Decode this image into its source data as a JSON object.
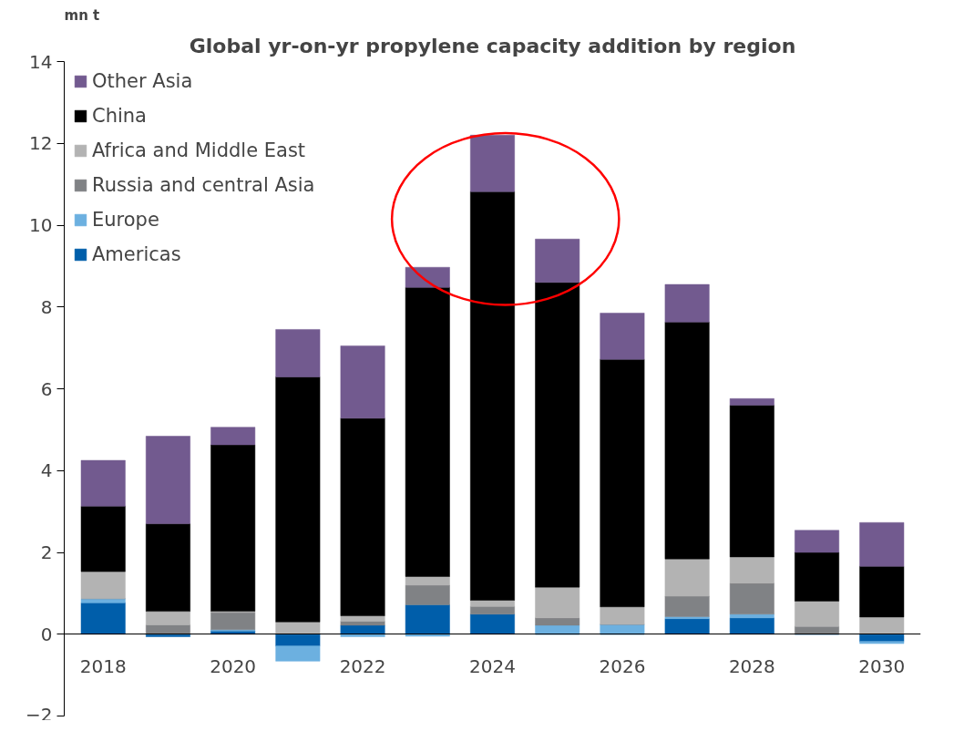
{
  "chart_data": {
    "type": "bar",
    "stacked": true,
    "title": "Global yr-on-yr propylene capacity addition by region",
    "ylabel": "mn t",
    "categories": [
      "2018",
      null,
      "2020",
      null,
      "2022",
      null,
      "2024",
      null,
      "2026",
      null,
      "2028",
      null,
      "2030"
    ],
    "series": [
      {
        "name": "Americas",
        "color": "#005eaa",
        "values": [
          0.77,
          -0.06,
          0.08,
          -0.29,
          0.22,
          0.72,
          0.49,
          0,
          0,
          0.38,
          0.4,
          0,
          -0.18
        ]
      },
      {
        "name": "Europe",
        "color": "#6cb0e0",
        "values": [
          0.1,
          0,
          0.03,
          -0.37,
          -0.06,
          -0.05,
          null,
          0.22,
          0.24,
          0.05,
          0.09,
          0,
          -0.05
        ]
      },
      {
        "name": "Russia and central Asia",
        "color": "#808285",
        "values": [
          0,
          0.23,
          0.42,
          null,
          0.1,
          0.48,
          0.19,
          0.18,
          0,
          0.5,
          0.76,
          0.19,
          null
        ]
      },
      {
        "name": "Africa and Middle East",
        "color": "#b3b3b3",
        "values": [
          0.66,
          0.33,
          0.03,
          0.3,
          0.13,
          0.21,
          0.15,
          0.75,
          0.43,
          0.91,
          0.64,
          0.62,
          0.42
        ]
      },
      {
        "name": "China",
        "color": "#000000",
        "values": [
          1.6,
          2.14,
          4.07,
          5.99,
          4.83,
          7.07,
          9.99,
          7.45,
          6.05,
          5.79,
          3.71,
          1.19,
          1.24
        ]
      },
      {
        "name": "Other Asia",
        "color": "#725a8f",
        "values": [
          1.12,
          2.14,
          0.43,
          1.16,
          1.77,
          0.49,
          1.38,
          1.06,
          1.13,
          0.92,
          0.16,
          0.54,
          1.07
        ]
      }
    ],
    "ylim": [
      -2,
      14
    ],
    "yticks": [
      -2,
      0,
      2,
      4,
      6,
      8,
      10,
      12,
      14
    ],
    "grid": false,
    "legend": "top left"
  }
}
